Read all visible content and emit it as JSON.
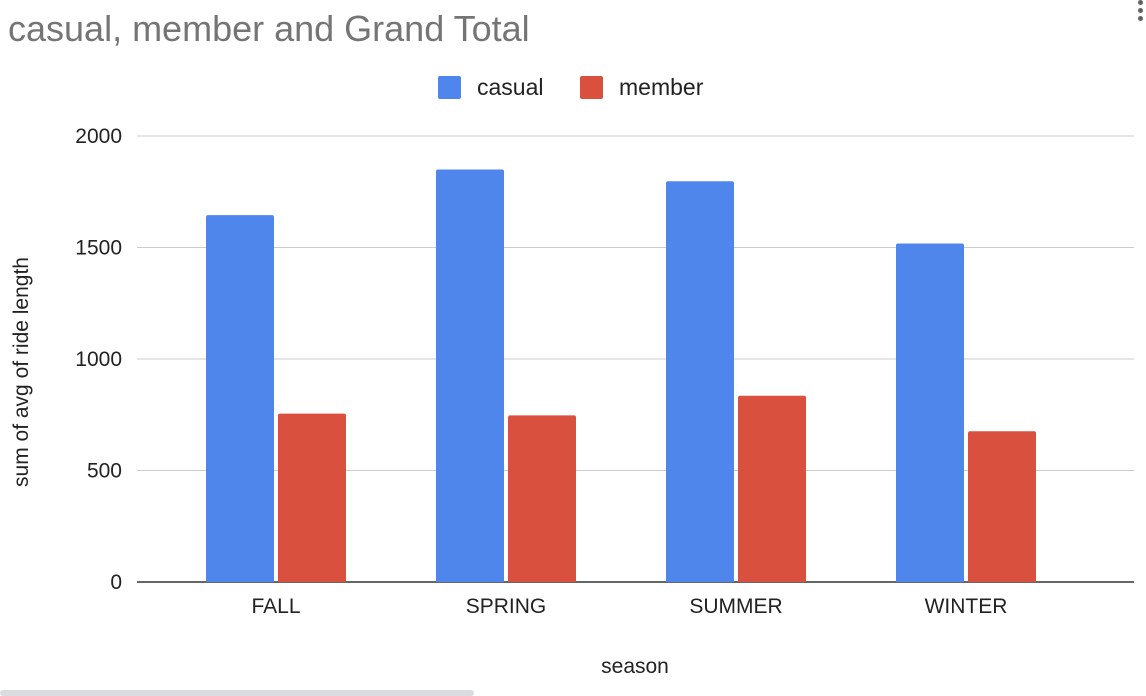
{
  "chart_data": {
    "type": "bar",
    "title": "casual, member and Grand Total",
    "xlabel": "season",
    "ylabel": "sum of avg of ride length",
    "categories": [
      "FALL",
      "SPRING",
      "SUMMER",
      "WINTER"
    ],
    "series": [
      {
        "name": "casual",
        "color": "#4f86ec",
        "values": [
          1645,
          1850,
          1797,
          1518
        ]
      },
      {
        "name": "member",
        "color": "#d9513e",
        "values": [
          755,
          747,
          835,
          676
        ]
      }
    ],
    "ylim": [
      0,
      2000
    ],
    "yticks": [
      "0",
      "500",
      "1000",
      "1500",
      "2000"
    ],
    "grid": true,
    "legend_position": "top"
  },
  "menu_icon": "more-vert-icon"
}
